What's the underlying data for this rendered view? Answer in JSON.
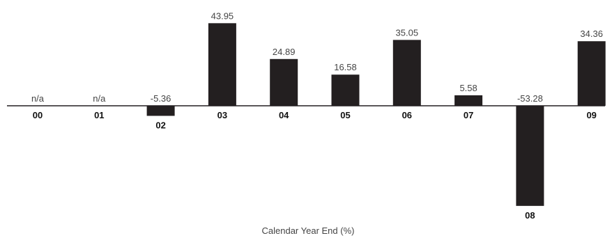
{
  "chart_data": {
    "type": "bar",
    "categories": [
      "00",
      "01",
      "02",
      "03",
      "04",
      "05",
      "06",
      "07",
      "08",
      "09"
    ],
    "values": [
      null,
      null,
      -5.36,
      43.95,
      24.89,
      16.58,
      35.05,
      5.58,
      -53.28,
      34.36
    ],
    "value_labels": [
      "n/a",
      "n/a",
      "-5.36",
      "43.95",
      "24.89",
      "16.58",
      "35.05",
      "5.58",
      "-53.28",
      "34.36"
    ],
    "xlabel": "Calendar Year End (%)",
    "ylabel": "",
    "ylim": [
      -60,
      50
    ],
    "grid": false,
    "bar_color": "#231f20",
    "axis_color": "#231f20"
  }
}
